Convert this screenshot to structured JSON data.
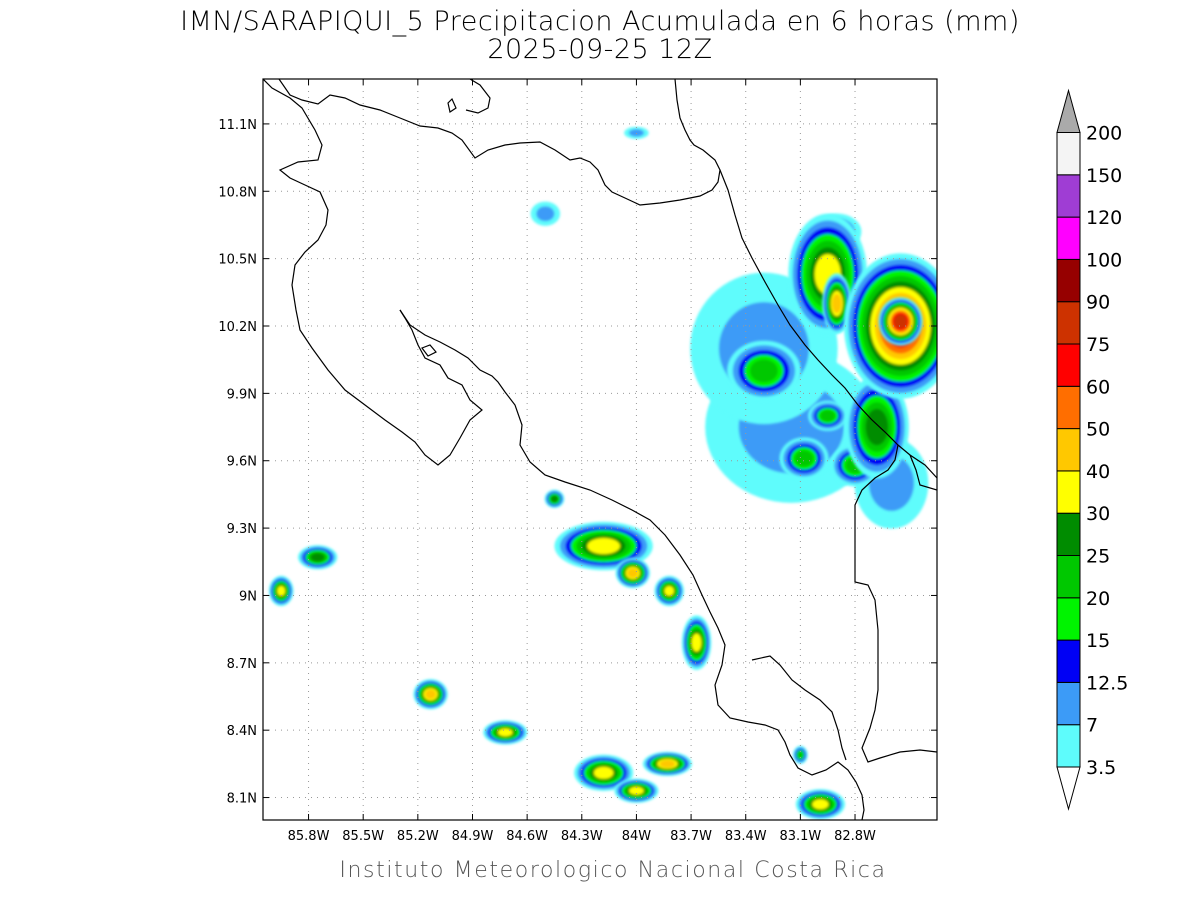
{
  "title": {
    "line1": "IMN/SARAPIQUI_5 Precipitacion Acumulada en 6 horas (mm)",
    "line2": "2025-09-25 12Z"
  },
  "credit": "Instituto Meteorologico Nacional Costa Rica",
  "map": {
    "lon_range": [
      -86.05,
      -82.35
    ],
    "lat_range": [
      8.0,
      11.3
    ],
    "lon_ticks": [
      {
        "value": -85.8,
        "label": "85.8W"
      },
      {
        "value": -85.5,
        "label": "85.5W"
      },
      {
        "value": -85.2,
        "label": "85.2W"
      },
      {
        "value": -84.9,
        "label": "84.9W"
      },
      {
        "value": -84.6,
        "label": "84.6W"
      },
      {
        "value": -84.3,
        "label": "84.3W"
      },
      {
        "value": -84.0,
        "label": "84W"
      },
      {
        "value": -83.7,
        "label": "83.7W"
      },
      {
        "value": -83.4,
        "label": "83.4W"
      },
      {
        "value": -83.1,
        "label": "83.1W"
      },
      {
        "value": -82.8,
        "label": "82.8W"
      }
    ],
    "lat_ticks": [
      {
        "value": 8.1,
        "label": "8.1N"
      },
      {
        "value": 8.4,
        "label": "8.4N"
      },
      {
        "value": 8.7,
        "label": "8.7N"
      },
      {
        "value": 9.0,
        "label": "9N"
      },
      {
        "value": 9.3,
        "label": "9.3N"
      },
      {
        "value": 9.6,
        "label": "9.6N"
      },
      {
        "value": 9.9,
        "label": "9.9N"
      },
      {
        "value": 10.2,
        "label": "10.2N"
      },
      {
        "value": 10.5,
        "label": "10.5N"
      },
      {
        "value": 10.8,
        "label": "10.8N"
      },
      {
        "value": 11.1,
        "label": "11.1N"
      }
    ],
    "grid": true,
    "coastline_color": "#000000"
  },
  "colorbar": {
    "levels": [
      {
        "label": "3.5",
        "color": "#5efcfc"
      },
      {
        "label": "7",
        "color": "#3c9bf7"
      },
      {
        "label": "12.5",
        "color": "#0000f5"
      },
      {
        "label": "15",
        "color": "#00f400"
      },
      {
        "label": "20",
        "color": "#00c800"
      },
      {
        "label": "25",
        "color": "#008c00"
      },
      {
        "label": "30",
        "color": "#ffff00"
      },
      {
        "label": "40",
        "color": "#ffc800"
      },
      {
        "label": "50",
        "color": "#ff6e00"
      },
      {
        "label": "60",
        "color": "#ff0000"
      },
      {
        "label": "75",
        "color": "#cd3200"
      },
      {
        "label": "90",
        "color": "#960000"
      },
      {
        "label": "100",
        "color": "#ff00ff"
      },
      {
        "label": "120",
        "color": "#9f3dd4"
      },
      {
        "label": "150",
        "color": "#f4f4f4"
      },
      {
        "label": "200",
        "color": "#aaaaaa"
      }
    ],
    "below_color": "#ffffff",
    "above_color": "#aaaaaa"
  },
  "precip_cells": [
    {
      "lon": -82.55,
      "lat": 10.2,
      "rx": 0.23,
      "ry": 0.24,
      "level": 9
    },
    {
      "lon": -82.55,
      "lat": 10.22,
      "rx": 0.09,
      "ry": 0.08,
      "level": 10
    },
    {
      "lon": -82.95,
      "lat": 10.43,
      "rx": 0.16,
      "ry": 0.2,
      "level": 6
    },
    {
      "lon": -82.9,
      "lat": 10.3,
      "rx": 0.06,
      "ry": 0.1,
      "level": 7
    },
    {
      "lon": -83.3,
      "lat": 10.0,
      "rx": 0.15,
      "ry": 0.1,
      "level": 4
    },
    {
      "lon": -82.68,
      "lat": 9.75,
      "rx": 0.13,
      "ry": 0.17,
      "level": 5
    },
    {
      "lon": -82.8,
      "lat": 9.58,
      "rx": 0.1,
      "ry": 0.07,
      "level": 4
    },
    {
      "lon": -83.08,
      "lat": 9.61,
      "rx": 0.1,
      "ry": 0.07,
      "level": 4
    },
    {
      "lon": -82.95,
      "lat": 9.8,
      "rx": 0.08,
      "ry": 0.05,
      "level": 4
    },
    {
      "lon": -83.15,
      "lat": 9.75,
      "rx": 0.35,
      "ry": 0.25,
      "level": 1
    },
    {
      "lon": -83.3,
      "lat": 10.1,
      "rx": 0.3,
      "ry": 0.25,
      "level": 1
    },
    {
      "lon": -82.6,
      "lat": 9.5,
      "rx": 0.15,
      "ry": 0.15,
      "level": 1
    },
    {
      "lon": -84.18,
      "lat": 9.22,
      "rx": 0.2,
      "ry": 0.08,
      "level": 6
    },
    {
      "lon": -84.02,
      "lat": 9.1,
      "rx": 0.07,
      "ry": 0.05,
      "level": 7
    },
    {
      "lon": -83.82,
      "lat": 9.02,
      "rx": 0.06,
      "ry": 0.05,
      "level": 6
    },
    {
      "lon": -83.67,
      "lat": 8.79,
      "rx": 0.06,
      "ry": 0.09,
      "level": 6
    },
    {
      "lon": -84.45,
      "lat": 9.43,
      "rx": 0.04,
      "ry": 0.03,
      "level": 5
    },
    {
      "lon": -85.13,
      "lat": 8.56,
      "rx": 0.07,
      "ry": 0.05,
      "level": 7
    },
    {
      "lon": -84.72,
      "lat": 8.39,
      "rx": 0.09,
      "ry": 0.04,
      "level": 6
    },
    {
      "lon": -84.18,
      "lat": 8.21,
      "rx": 0.12,
      "ry": 0.06,
      "level": 6
    },
    {
      "lon": -84.0,
      "lat": 8.13,
      "rx": 0.09,
      "ry": 0.04,
      "level": 6
    },
    {
      "lon": -83.83,
      "lat": 8.25,
      "rx": 0.1,
      "ry": 0.04,
      "level": 7
    },
    {
      "lon": -85.95,
      "lat": 9.02,
      "rx": 0.05,
      "ry": 0.05,
      "level": 6
    },
    {
      "lon": -85.75,
      "lat": 9.17,
      "rx": 0.08,
      "ry": 0.04,
      "level": 5
    },
    {
      "lon": -82.99,
      "lat": 8.07,
      "rx": 0.1,
      "ry": 0.05,
      "level": 6
    },
    {
      "lon": -83.1,
      "lat": 8.29,
      "rx": 0.03,
      "ry": 0.03,
      "level": 4
    },
    {
      "lon": -84.5,
      "lat": 10.7,
      "rx": 0.06,
      "ry": 0.04,
      "level": 1
    },
    {
      "lon": -84.0,
      "lat": 11.06,
      "rx": 0.05,
      "ry": 0.02,
      "level": 1
    },
    {
      "lon": -82.9,
      "lat": 10.62,
      "rx": 0.1,
      "ry": 0.06,
      "level": 2
    }
  ]
}
